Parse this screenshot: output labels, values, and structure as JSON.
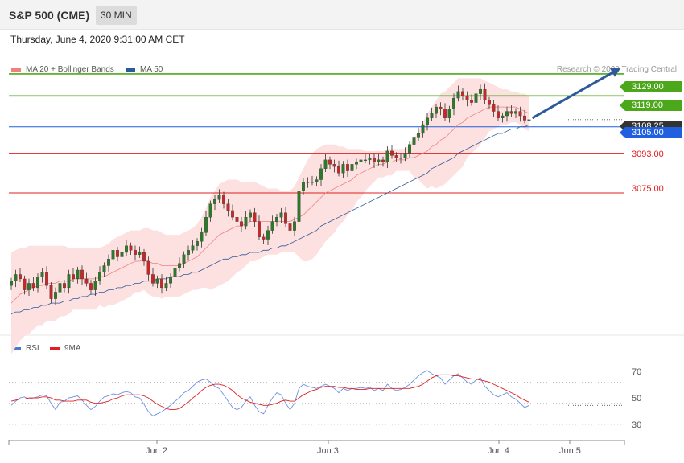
{
  "header": {
    "ticker": "S&P 500 (CME)",
    "timeframe": "30 MIN"
  },
  "datetime": "Thursday, June 4, 2020 9:31:00 AM CET",
  "legend": {
    "items": [
      {
        "label": "MA 20 + Bollinger Bands",
        "color": "#f08080"
      },
      {
        "label": "MA 50",
        "color": "#2d5a9a"
      }
    ],
    "credit": "Research © 2020 Trading Central"
  },
  "rsi_legend": {
    "items": [
      {
        "label": "RSI",
        "color": "#4a78d4"
      },
      {
        "label": "9MA",
        "color": "#e02020"
      }
    ]
  },
  "levels": [
    {
      "label": "3129.00",
      "value": 3129.0,
      "kind": "resistance",
      "color": "#4ca81a"
    },
    {
      "label": "3119.00",
      "value": 3119.0,
      "kind": "resistance",
      "color": "#4ca81a"
    },
    {
      "label": "3108.25",
      "value": 3108.25,
      "kind": "last",
      "color": "#333333"
    },
    {
      "label": "3105.00",
      "value": 3105.0,
      "kind": "pivot",
      "color": "#1f5fe0"
    },
    {
      "label": "3093.00",
      "value": 3093.0,
      "kind": "support",
      "color": "#e02020"
    },
    {
      "label": "3075.00",
      "value": 3075.0,
      "kind": "support",
      "color": "#e02020"
    }
  ],
  "rsi_levels": [
    "70",
    "50",
    "30"
  ],
  "x_labels": [
    "Jun 2",
    "Jun 3",
    "Jun 4",
    "Jun 5"
  ],
  "chart_data": {
    "type": "line",
    "price_axis": [
      3013,
      3137
    ],
    "rsi_axis": [
      17,
      97
    ],
    "total_bars": 136,
    "last_price_bar": 117,
    "close": [
      3035,
      3038,
      3036,
      3031,
      3034,
      3032,
      3037,
      3039,
      3033,
      3027,
      3030,
      3034,
      3032,
      3038,
      3036,
      3040,
      3036,
      3034,
      3031,
      3035,
      3039,
      3042,
      3045,
      3049,
      3046,
      3048,
      3051,
      3049,
      3047,
      3048,
      3044,
      3038,
      3034,
      3036,
      3032,
      3034,
      3037,
      3041,
      3043,
      3047,
      3049,
      3051,
      3053,
      3057,
      3064,
      3070,
      3072,
      3074,
      3070,
      3067,
      3064,
      3062,
      3060,
      3064,
      3066,
      3062,
      3055,
      3054,
      3058,
      3062,
      3064,
      3066,
      3061,
      3058,
      3062,
      3076,
      3080,
      3080,
      3080,
      3081,
      3086,
      3090,
      3088,
      3087,
      3084,
      3088,
      3085,
      3088,
      3089,
      3090,
      3090,
      3091,
      3089,
      3090,
      3089,
      3094,
      3092,
      3091,
      3091,
      3093,
      3097,
      3100,
      3102,
      3106,
      3109,
      3111,
      3114,
      3113,
      3109,
      3113,
      3118,
      3121,
      3119,
      3117,
      3116,
      3120,
      3122,
      3117,
      3115,
      3112,
      3109,
      3110,
      3112,
      3111,
      3112,
      3110,
      3108,
      3108.25
    ],
    "ma20": [
      3025,
      3027,
      3029,
      3030,
      3031,
      3032,
      3033,
      3033,
      3034,
      3034,
      3034,
      3035,
      3035,
      3035,
      3036,
      3036,
      3036,
      3036,
      3036,
      3036,
      3037,
      3037,
      3038,
      3039,
      3040,
      3041,
      3042,
      3043,
      3044,
      3044,
      3045,
      3044,
      3043,
      3043,
      3042,
      3042,
      3042,
      3042,
      3042,
      3043,
      3044,
      3045,
      3046,
      3048,
      3050,
      3052,
      3054,
      3056,
      3057,
      3058,
      3059,
      3060,
      3060,
      3061,
      3062,
      3062,
      3062,
      3062,
      3062,
      3062,
      3062,
      3062,
      3062,
      3062,
      3063,
      3064,
      3065,
      3067,
      3069,
      3071,
      3073,
      3075,
      3076,
      3077,
      3078,
      3079,
      3080,
      3081,
      3083,
      3084,
      3085,
      3086,
      3087,
      3088,
      3088,
      3089,
      3089,
      3090,
      3090,
      3090,
      3091,
      3091,
      3092,
      3093,
      3094,
      3096,
      3097,
      3099,
      3100,
      3102,
      3104,
      3106,
      3107,
      3109,
      3110,
      3111,
      3112,
      3113,
      3114,
      3114,
      3114,
      3114,
      3114,
      3114,
      3114,
      3113,
      3112,
      3111
    ],
    "ma50": [
      3020,
      3021,
      3021,
      3022,
      3022,
      3023,
      3023,
      3024,
      3024,
      3025,
      3025,
      3025,
      3026,
      3026,
      3027,
      3027,
      3028,
      3028,
      3029,
      3029,
      3030,
      3030,
      3031,
      3031,
      3032,
      3032,
      3033,
      3033,
      3034,
      3034,
      3035,
      3035,
      3035,
      3036,
      3036,
      3036,
      3037,
      3037,
      3037,
      3038,
      3038,
      3039,
      3039,
      3040,
      3041,
      3042,
      3043,
      3044,
      3045,
      3045,
      3046,
      3046,
      3047,
      3047,
      3048,
      3048,
      3048,
      3049,
      3049,
      3050,
      3050,
      3051,
      3051,
      3052,
      3053,
      3054,
      3055,
      3056,
      3057,
      3058,
      3060,
      3061,
      3062,
      3063,
      3064,
      3065,
      3066,
      3067,
      3068,
      3069,
      3070,
      3071,
      3072,
      3073,
      3074,
      3075,
      3076,
      3077,
      3078,
      3079,
      3080,
      3081,
      3082,
      3083,
      3084,
      3086,
      3087,
      3088,
      3089,
      3090,
      3091,
      3093,
      3094,
      3095,
      3096,
      3097,
      3098,
      3099,
      3100,
      3101,
      3102,
      3102,
      3103,
      3104,
      3104,
      3105,
      3105,
      3106
    ],
    "bb_upper": [
      3048,
      3049,
      3050,
      3050,
      3051,
      3051,
      3051,
      3051,
      3051,
      3051,
      3051,
      3051,
      3051,
      3050,
      3050,
      3050,
      3050,
      3050,
      3050,
      3050,
      3050,
      3051,
      3052,
      3054,
      3055,
      3056,
      3057,
      3058,
      3058,
      3058,
      3059,
      3059,
      3058,
      3058,
      3057,
      3056,
      3056,
      3056,
      3056,
      3057,
      3058,
      3059,
      3061,
      3064,
      3068,
      3073,
      3076,
      3079,
      3080,
      3081,
      3081,
      3081,
      3080,
      3080,
      3080,
      3080,
      3079,
      3078,
      3077,
      3077,
      3077,
      3076,
      3076,
      3076,
      3078,
      3082,
      3086,
      3090,
      3093,
      3095,
      3096,
      3097,
      3097,
      3097,
      3096,
      3096,
      3095,
      3095,
      3095,
      3095,
      3094,
      3094,
      3094,
      3094,
      3094,
      3095,
      3095,
      3095,
      3095,
      3095,
      3097,
      3100,
      3103,
      3107,
      3111,
      3114,
      3117,
      3120,
      3121,
      3123,
      3125,
      3127,
      3127,
      3127,
      3127,
      3127,
      3127,
      3126,
      3125,
      3124,
      3123,
      3122,
      3122,
      3121,
      3121,
      3120,
      3120,
      3119
    ],
    "bb_lower": [
      3002,
      3005,
      3008,
      3010,
      3011,
      3013,
      3015,
      3015,
      3017,
      3017,
      3017,
      3019,
      3019,
      3020,
      3022,
      3022,
      3022,
      3022,
      3022,
      3022,
      3024,
      3023,
      3024,
      3024,
      3025,
      3026,
      3027,
      3028,
      3030,
      3030,
      3031,
      3029,
      3028,
      3028,
      3027,
      3028,
      3028,
      3028,
      3028,
      3029,
      3030,
      3031,
      3031,
      3032,
      3032,
      3031,
      3032,
      3033,
      3034,
      3035,
      3037,
      3039,
      3040,
      3042,
      3044,
      3044,
      3045,
      3046,
      3047,
      3047,
      3047,
      3048,
      3048,
      3048,
      3048,
      3046,
      3044,
      3044,
      3045,
      3047,
      3050,
      3053,
      3055,
      3057,
      3060,
      3062,
      3065,
      3067,
      3071,
      3073,
      3076,
      3078,
      3080,
      3082,
      3082,
      3083,
      3083,
      3085,
      3085,
      3085,
      3085,
      3082,
      3081,
      3079,
      3077,
      3078,
      3077,
      3078,
      3079,
      3081,
      3083,
      3085,
      3087,
      3091,
      3093,
      3095,
      3097,
      3100,
      3103,
      3104,
      3105,
      3106,
      3106,
      3107,
      3107,
      3106,
      3104,
      3103
    ],
    "rsi": [
      48,
      52,
      55,
      56,
      54,
      55,
      56,
      58,
      57,
      50,
      44,
      51,
      52,
      55,
      56,
      57,
      53,
      48,
      44,
      47,
      52,
      56,
      57,
      59,
      58,
      60,
      61,
      60,
      56,
      55,
      49,
      42,
      38,
      40,
      42,
      45,
      48,
      52,
      55,
      60,
      62,
      66,
      70,
      72,
      73,
      70,
      66,
      64,
      58,
      52,
      46,
      44,
      46,
      52,
      56,
      48,
      42,
      40,
      48,
      55,
      60,
      58,
      50,
      44,
      50,
      64,
      68,
      66,
      65,
      64,
      66,
      68,
      66,
      64,
      60,
      64,
      62,
      64,
      64,
      65,
      64,
      65,
      62,
      64,
      62,
      68,
      64,
      62,
      63,
      65,
      68,
      72,
      76,
      79,
      81,
      78,
      76,
      74,
      68,
      72,
      76,
      78,
      74,
      70,
      68,
      72,
      74,
      66,
      62,
      58,
      56,
      58,
      60,
      56,
      54,
      50,
      46,
      48
    ],
    "rsi_ma9": [
      52,
      53,
      54,
      54,
      55,
      55,
      55,
      56,
      56,
      55,
      53,
      53,
      52,
      52,
      52,
      53,
      53,
      53,
      51,
      50,
      50,
      51,
      52,
      54,
      55,
      57,
      58,
      58,
      58,
      58,
      57,
      55,
      52,
      49,
      47,
      45,
      44,
      44,
      45,
      48,
      51,
      55,
      58,
      62,
      65,
      67,
      68,
      68,
      67,
      65,
      62,
      58,
      55,
      53,
      51,
      50,
      49,
      48,
      48,
      49,
      50,
      52,
      53,
      52,
      52,
      55,
      58,
      60,
      62,
      63,
      65,
      66,
      66,
      66,
      65,
      65,
      64,
      64,
      63,
      63,
      63,
      64,
      64,
      64,
      64,
      64,
      64,
      64,
      64,
      64,
      64,
      65,
      66,
      68,
      71,
      74,
      76,
      77,
      77,
      77,
      76,
      76,
      75,
      74,
      73,
      73,
      72,
      71,
      70,
      68,
      66,
      64,
      62,
      60,
      58,
      55,
      53,
      51
    ]
  }
}
